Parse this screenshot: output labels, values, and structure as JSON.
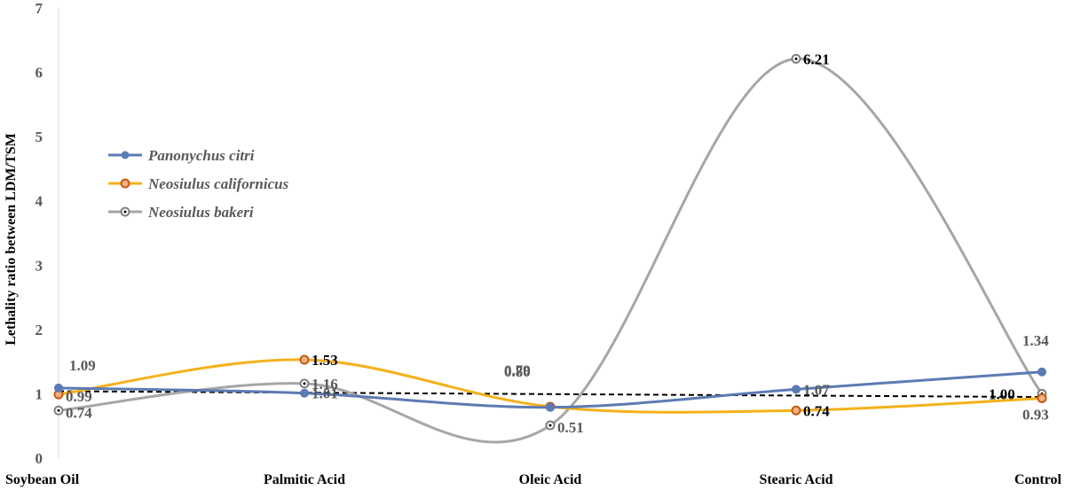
{
  "chart_data": {
    "type": "line",
    "ylabel": "Lethality ratio between LDM/TSM",
    "ylim": [
      0,
      7
    ],
    "yticks": [
      "0",
      "1",
      "2",
      "3",
      "4",
      "5",
      "6",
      "7"
    ],
    "categories": [
      "Soybean Oil",
      "Palmitic Acid",
      "Oleic Acid",
      "Stearic Acid",
      "Control"
    ],
    "series": [
      {
        "name": "Panonychus citri",
        "color": "#5b7bb4",
        "marker": "filled",
        "values": [
          1.09,
          1.01,
          0.79,
          1.07,
          1.34
        ]
      },
      {
        "name": "Neosiulus californicus",
        "color": "#f5b01a",
        "marker": "ring",
        "values": [
          0.99,
          1.53,
          0.8,
          0.74,
          0.93
        ]
      },
      {
        "name": "Neosiulus bakeri",
        "color": "#a6a6a6",
        "marker": "dot",
        "values": [
          0.74,
          1.16,
          0.51,
          6.21,
          1.0
        ]
      }
    ],
    "data_labels": [
      [
        "1.09",
        "1.01",
        "0.79",
        "1.07",
        "1.34"
      ],
      [
        "0.99",
        "1.53",
        "0.80",
        "0.74",
        "0.93"
      ],
      [
        "0.74",
        "1.16",
        "0.51",
        "6.21",
        "1.00"
      ]
    ],
    "reference_line": {
      "y": 1.0,
      "style": "dashed",
      "color": "#000000"
    },
    "grid": false,
    "legend_position": "center-left"
  }
}
